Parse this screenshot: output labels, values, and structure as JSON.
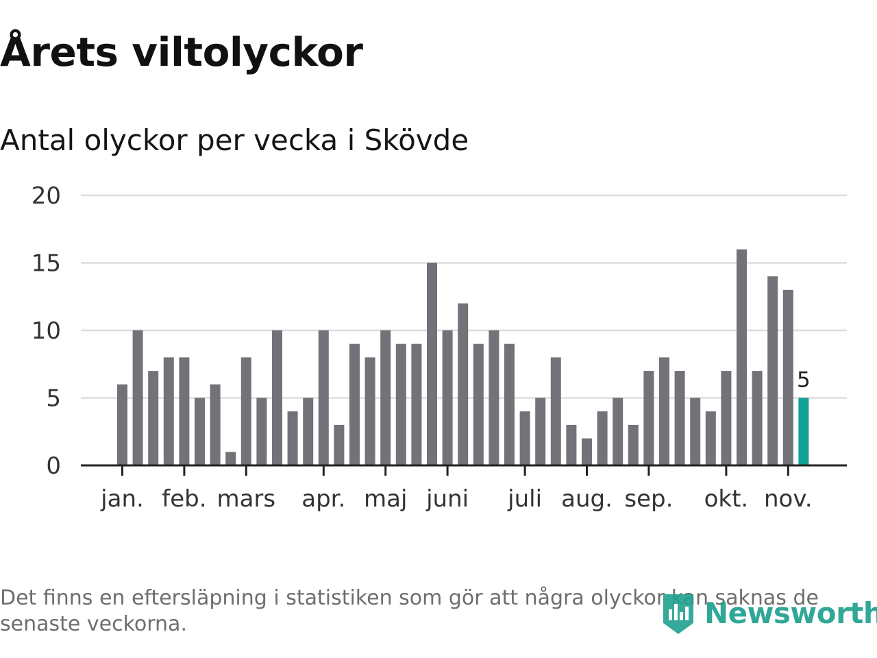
{
  "title": "Årets viltolyckor",
  "subtitle": "Antal olyckor per vecka i Skövde",
  "footnote": "Det finns en eftersläpning i statistiken som gör att några olyckor kan saknas de senaste veckorna.",
  "logo": {
    "text": "Newsworthy",
    "icon": "newsworthy-logo-icon"
  },
  "colors": {
    "bar": "#737278",
    "highlight": "#12a195",
    "grid": "#dddddd",
    "axis": "#222222",
    "text": "#333333"
  },
  "chart_data": {
    "type": "bar",
    "title": "Antal olyckor per vecka i Skövde",
    "xlabel": "",
    "ylabel": "",
    "ylim": [
      0,
      20
    ],
    "yticks": [
      0,
      5,
      10,
      15,
      20
    ],
    "grid": true,
    "values": [
      6,
      10,
      7,
      8,
      8,
      5,
      6,
      1,
      8,
      5,
      10,
      4,
      5,
      10,
      3,
      9,
      8,
      10,
      9,
      9,
      15,
      10,
      12,
      9,
      10,
      9,
      4,
      5,
      8,
      3,
      2,
      4,
      5,
      3,
      7,
      8,
      7,
      5,
      4,
      7,
      16,
      7,
      14,
      13,
      5
    ],
    "highlight_index": 44,
    "highlight_label": "5",
    "month_labels": [
      {
        "label": "jan.",
        "week_index": 0.0
      },
      {
        "label": "feb.",
        "week_index": 4.0
      },
      {
        "label": "mars",
        "week_index": 8.0
      },
      {
        "label": "apr.",
        "week_index": 13.0
      },
      {
        "label": "maj",
        "week_index": 17.0
      },
      {
        "label": "juni",
        "week_index": 21.0
      },
      {
        "label": "juli",
        "week_index": 26.0
      },
      {
        "label": "aug.",
        "week_index": 30.0
      },
      {
        "label": "sep.",
        "week_index": 34.0
      },
      {
        "label": "okt.",
        "week_index": 39.0
      },
      {
        "label": "nov.",
        "week_index": 43.0
      }
    ]
  }
}
